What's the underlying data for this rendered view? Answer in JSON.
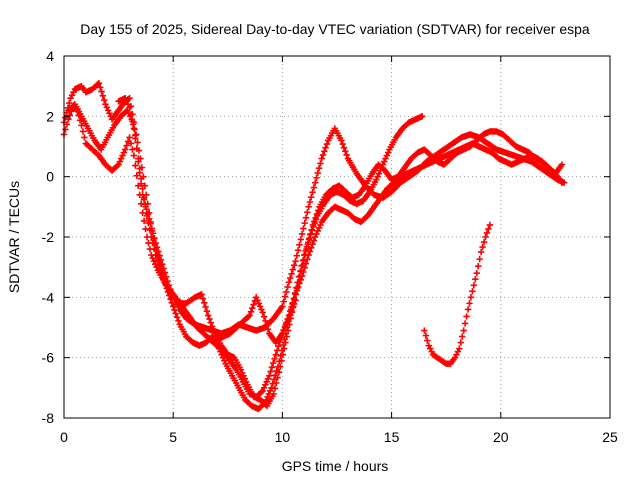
{
  "chart_data": {
    "type": "scatter",
    "title": "Day 155 of 2025, Sidereal Day-to-day VTEC variation (SDTVAR) for receiver espa",
    "xlabel": "GPS time / hours",
    "ylabel": "SDTVAR / TECUs",
    "xlim": [
      0,
      25
    ],
    "ylim": [
      -8,
      4
    ],
    "xticks": [
      "0",
      "5",
      "10",
      "15",
      "20",
      "25"
    ],
    "yticks": [
      "-8",
      "-6",
      "-4",
      "-2",
      "0",
      "2",
      "4"
    ],
    "grid": true,
    "marker": "+",
    "color": "#ff0000",
    "series": [
      {
        "x": [
          0.0,
          0.3,
          0.5,
          0.8,
          1.0,
          1.3,
          1.6,
          1.9,
          2.2,
          2.5,
          2.8,
          3.0,
          3.2,
          3.4,
          3.6,
          3.9,
          4.2,
          4.5,
          4.8,
          5.0,
          5.3,
          5.6,
          6.0,
          6.4,
          6.8,
          7.2,
          7.6,
          8.0,
          8.4,
          8.8,
          9.2,
          9.6,
          10.0,
          10.3,
          10.6,
          10.9,
          11.2,
          11.5,
          11.8,
          12.1,
          12.4,
          12.7,
          13.0,
          13.4,
          13.8,
          14.2,
          14.6,
          15.0,
          15.4,
          15.8,
          16.2,
          16.6,
          17.0,
          17.4,
          17.8,
          18.2,
          18.6,
          19.0,
          19.4,
          19.8,
          20.2,
          20.6,
          21.0,
          21.4,
          21.8,
          22.2,
          22.6,
          22.9
        ],
        "y": [
          1.8,
          2.6,
          2.9,
          3.0,
          2.8,
          2.9,
          3.1,
          2.4,
          1.9,
          2.2,
          2.5,
          2.6,
          1.8,
          0.5,
          -0.6,
          -1.4,
          -2.2,
          -2.9,
          -3.6,
          -4.0,
          -4.4,
          -4.7,
          -4.9,
          -5.0,
          -5.1,
          -5.2,
          -5.1,
          -4.9,
          -5.0,
          -5.1,
          -5.0,
          -4.7,
          -4.3,
          -3.5,
          -2.8,
          -1.9,
          -1.0,
          -0.2,
          0.6,
          1.2,
          1.6,
          1.2,
          0.6,
          0.1,
          -0.3,
          -0.6,
          -0.7,
          -0.5,
          -0.2,
          0.0,
          0.2,
          0.5,
          0.7,
          0.9,
          1.1,
          1.3,
          1.4,
          1.3,
          1.1,
          0.9,
          0.8,
          0.7,
          0.6,
          0.5,
          0.3,
          0.1,
          -0.1,
          -0.2
        ]
      },
      {
        "x": [
          0.0,
          0.2,
          0.4,
          0.6,
          0.8,
          1.0,
          1.3,
          1.6,
          1.9,
          2.2,
          2.5,
          2.8,
          3.0,
          3.2,
          3.4,
          3.6,
          3.8,
          4.0,
          4.3,
          4.6,
          4.9,
          5.2,
          5.5,
          5.8,
          6.1,
          6.4,
          6.7,
          7.0,
          7.3,
          7.6,
          7.9,
          8.2,
          8.5,
          8.8,
          9.1,
          9.4,
          9.7,
          10.0,
          10.3,
          10.6,
          10.9,
          11.2,
          11.5,
          11.8,
          12.1,
          12.4,
          12.7,
          13.0,
          13.3,
          13.6,
          13.9,
          14.2,
          14.5,
          14.8,
          15.1,
          15.4,
          15.7,
          16.0,
          16.3,
          16.6,
          16.9,
          17.2,
          17.5,
          17.8,
          18.1,
          18.4,
          18.7,
          19.0,
          19.3,
          19.6,
          19.9,
          20.2,
          20.5,
          20.8,
          21.1,
          21.4,
          21.7,
          22.0,
          22.3,
          22.6,
          22.8
        ],
        "y": [
          1.4,
          1.9,
          2.3,
          2.2,
          1.7,
          1.1,
          0.9,
          0.7,
          0.4,
          0.2,
          0.4,
          0.9,
          1.3,
          0.7,
          -0.3,
          -1.2,
          -2.0,
          -2.6,
          -3.1,
          -3.5,
          -3.8,
          -4.1,
          -4.4,
          -4.7,
          -5.0,
          -5.2,
          -5.4,
          -5.6,
          -5.8,
          -6.1,
          -6.4,
          -6.8,
          -7.2,
          -7.3,
          -7.1,
          -6.6,
          -5.9,
          -5.2,
          -4.6,
          -3.9,
          -3.3,
          -2.6,
          -2.0,
          -1.5,
          -1.2,
          -1.0,
          -1.1,
          -1.2,
          -1.4,
          -1.5,
          -1.3,
          -1.0,
          -0.7,
          -0.4,
          -0.2,
          0.0,
          0.1,
          0.2,
          0.3,
          0.4,
          0.5,
          0.6,
          0.7,
          0.8,
          0.9,
          1.0,
          1.1,
          1.0,
          0.9,
          0.8,
          0.6,
          0.5,
          0.4,
          0.5,
          0.6,
          0.7,
          0.6,
          0.4,
          0.2,
          0.0,
          -0.2
        ]
      },
      {
        "x": [
          0.2,
          0.5,
          0.8,
          1.1,
          1.4,
          1.7,
          2.0,
          2.3,
          2.6,
          2.9,
          3.1,
          3.3,
          3.5,
          3.7,
          3.9,
          4.1,
          4.4,
          4.7,
          5.0,
          5.3,
          5.6,
          5.9,
          6.2,
          6.5,
          6.8,
          7.1,
          7.4,
          7.7,
          8.0,
          8.3,
          8.6,
          8.9,
          9.2,
          9.5,
          9.8,
          10.1,
          10.4,
          10.7,
          11.0,
          11.3,
          11.6,
          11.9,
          12.2,
          12.5,
          12.8,
          13.1,
          13.4,
          13.7,
          14.0,
          14.3,
          14.6,
          14.9,
          15.2,
          15.5,
          15.8,
          16.1,
          16.4
        ],
        "y": [
          2.2,
          2.4,
          2.0,
          1.6,
          1.2,
          0.9,
          1.3,
          1.7,
          2.0,
          2.2,
          1.9,
          1.4,
          0.6,
          -0.3,
          -1.2,
          -2.1,
          -2.9,
          -3.7,
          -4.3,
          -4.9,
          -5.3,
          -5.5,
          -5.6,
          -5.5,
          -5.3,
          -5.7,
          -6.2,
          -6.6,
          -7.0,
          -7.4,
          -7.6,
          -7.7,
          -7.5,
          -7.0,
          -6.3,
          -5.4,
          -4.4,
          -3.5,
          -2.6,
          -1.9,
          -1.3,
          -0.9,
          -0.6,
          -0.5,
          -0.6,
          -0.8,
          -0.9,
          -0.8,
          -0.5,
          -0.1,
          0.4,
          0.9,
          1.3,
          1.6,
          1.8,
          1.9,
          2.0
        ]
      },
      {
        "x": [
          2.5,
          2.8,
          3.0,
          3.2,
          3.4,
          3.6,
          3.8,
          4.0,
          4.2,
          4.4,
          4.6,
          4.8,
          5.0,
          5.2,
          5.4,
          5.6,
          5.8,
          6.0,
          6.3,
          6.6,
          6.9,
          7.2,
          7.5,
          7.8,
          8.1,
          8.4,
          8.7,
          9.0,
          9.3,
          9.6,
          9.9,
          10.2,
          10.5,
          10.8,
          11.1,
          11.4,
          11.7,
          12.0,
          12.3,
          12.6,
          12.9,
          13.2,
          13.5,
          13.8,
          14.1,
          14.4,
          14.7,
          15.0,
          15.3,
          15.6,
          15.9,
          16.2,
          16.5,
          16.8,
          17.1,
          17.4,
          17.7,
          18.0,
          18.3,
          18.6,
          18.9,
          19.2,
          19.5,
          19.8,
          20.1,
          20.4,
          20.7,
          21.0,
          21.3,
          21.6,
          21.9,
          22.2,
          22.5,
          22.8
        ],
        "y": [
          2.5,
          2.6,
          2.3,
          1.6,
          0.6,
          -0.4,
          -1.3,
          -2.0,
          -2.6,
          -3.1,
          -3.5,
          -3.8,
          -4.0,
          -4.1,
          -4.2,
          -4.2,
          -4.1,
          -4.0,
          -3.9,
          -4.6,
          -5.2,
          -5.6,
          -5.9,
          -6.0,
          -6.4,
          -6.9,
          -7.3,
          -7.4,
          -7.6,
          -7.2,
          -6.3,
          -5.3,
          -4.3,
          -3.3,
          -2.4,
          -1.6,
          -1.0,
          -0.6,
          -0.4,
          -0.3,
          -0.5,
          -0.7,
          -0.6,
          -0.3,
          0.1,
          0.4,
          0.2,
          -0.1,
          0.0,
          0.3,
          0.6,
          0.8,
          0.9,
          0.7,
          0.5,
          0.4,
          0.6,
          0.8,
          0.9,
          1.0,
          1.2,
          1.4,
          1.5,
          1.5,
          1.4,
          1.2,
          1.0,
          0.9,
          0.8,
          0.6,
          0.5,
          0.3,
          0.1,
          0.4
        ]
      },
      {
        "x": [
          16.5,
          16.7,
          16.9,
          17.1,
          17.3,
          17.5,
          17.7,
          17.9,
          18.1,
          18.3,
          18.5,
          18.7,
          18.9,
          19.1,
          19.3,
          19.5
        ],
        "y": [
          -5.1,
          -5.6,
          -5.9,
          -6.0,
          -6.1,
          -6.2,
          -6.2,
          -6.0,
          -5.7,
          -5.1,
          -4.4,
          -3.8,
          -3.2,
          -2.5,
          -2.0,
          -1.6
        ]
      },
      {
        "x": [
          7.0,
          7.3,
          7.6,
          7.9,
          8.2,
          8.5,
          8.8,
          9.1,
          9.4,
          9.7,
          10.0,
          10.3,
          10.6
        ],
        "y": [
          -5.4,
          -5.3,
          -5.2,
          -5.0,
          -4.8,
          -4.6,
          -4.0,
          -4.5,
          -5.2,
          -5.5,
          -5.2,
          -4.7,
          -4.1
        ]
      }
    ]
  }
}
